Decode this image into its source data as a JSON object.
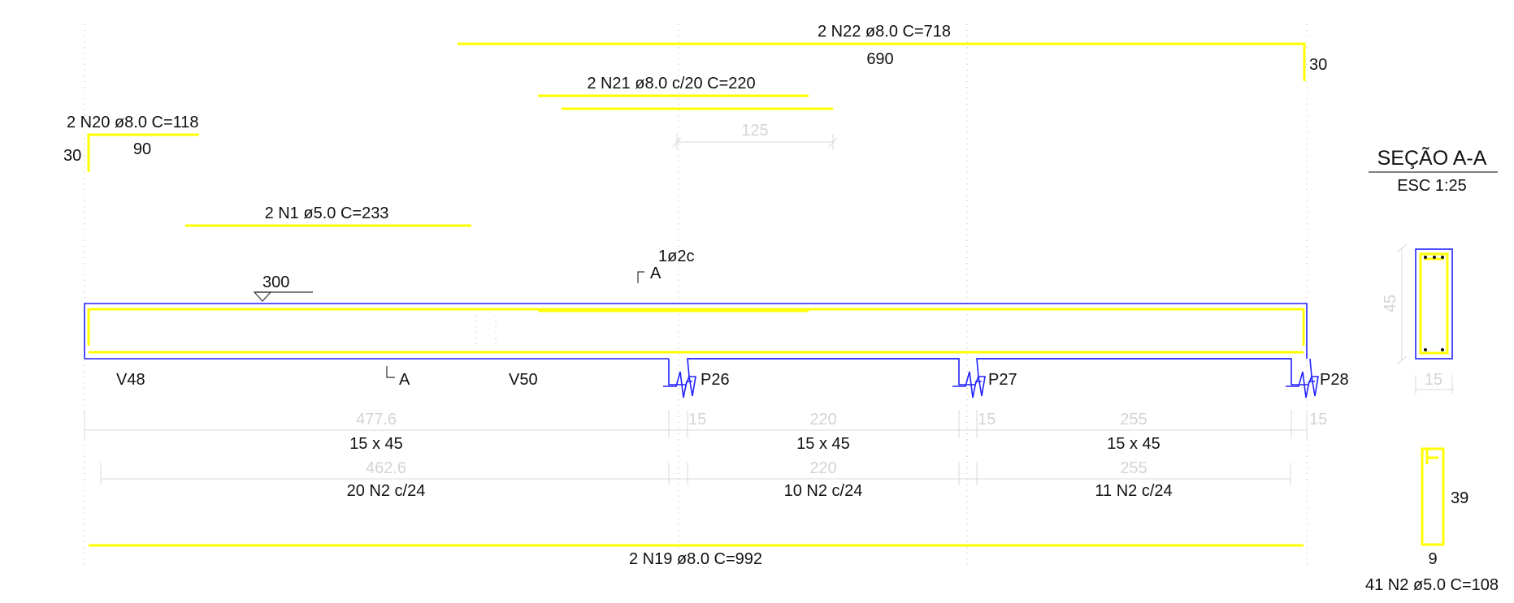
{
  "colors": {
    "rebar": "#ffff00",
    "beam": "#2222ff",
    "text": "#111111",
    "dimension": "#d4d4d4"
  },
  "bars": {
    "n22": {
      "label": "2 N22 ø8.0  C=718",
      "length": "690",
      "hook": "30"
    },
    "n21": {
      "label": "2 N21 ø8.0 c/20  C=220",
      "length": "125"
    },
    "n20": {
      "label": "2 N20 ø8.0  C=118",
      "length": "90",
      "hook": "30"
    },
    "n1": {
      "label": "2 N1 ø5.0  C=233"
    },
    "n19": {
      "label": "2 N19 ø8.0  C=992"
    },
    "n2": {
      "label": "41 N2 ø5.0  C=108",
      "height": "39",
      "width": "9"
    }
  },
  "elevation": {
    "level_mark": "300",
    "section_top_letter": "A",
    "section_top_note": "1ø2c",
    "section_bottom_letter": "A",
    "supports": [
      "V48",
      "V50",
      "P26",
      "P27",
      "P28"
    ]
  },
  "spans": [
    {
      "length": "477.6",
      "section": "15 x 45",
      "stirrup_length": "462.6",
      "stirrups": "20 N2 c/24",
      "support_width": "15"
    },
    {
      "length": "220",
      "section": "15 x 45",
      "stirrup_length": "220",
      "stirrups": "10 N2 c/24",
      "support_width": "15"
    },
    {
      "length": "255",
      "section": "15 x 45",
      "stirrup_length": "255",
      "stirrups": "11 N2 c/24",
      "support_width": "15"
    }
  ],
  "section": {
    "title": "SEÇÃO A-A",
    "scale": "ESC 1:25",
    "height": "45",
    "width": "15"
  }
}
